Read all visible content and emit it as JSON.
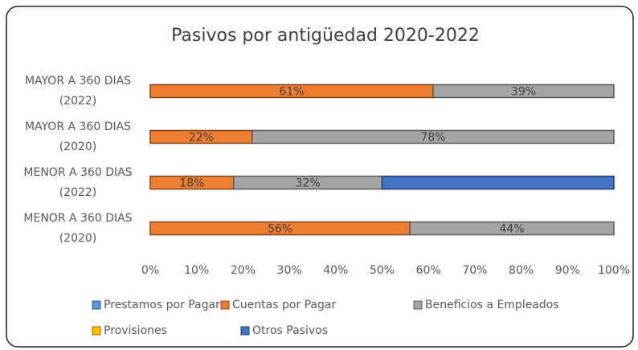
{
  "chart_data": {
    "type": "stacked_bar_horizontal",
    "title": "Pasivos por antigüedad 2020-2022",
    "categories": [
      [
        "MAYOR A 360 DIAS",
        "(2022)"
      ],
      [
        "MAYOR A 360 DIAS",
        "(2020)"
      ],
      [
        "MENOR A 360 DIAS",
        "(2022)"
      ],
      [
        "MENOR A 360 DIAS",
        "(2020)"
      ]
    ],
    "series": [
      {
        "name": "Prestamos por Pagar",
        "color": "#5b9bd5",
        "values": [
          null,
          null,
          null,
          null
        ]
      },
      {
        "name": "Cuentas por Pagar",
        "color": "#ed7d31",
        "values": [
          61,
          22,
          18,
          56
        ],
        "value_labels": [
          "61%",
          "22%",
          "18%",
          "56%"
        ]
      },
      {
        "name": "Beneficios a Empleados",
        "color": "#a5a5a5",
        "values": [
          39,
          78,
          32,
          44
        ],
        "value_labels": [
          "39%",
          "78%",
          "32%",
          "44%"
        ]
      },
      {
        "name": "Provisiones",
        "color": "#ffc000",
        "values": [
          null,
          null,
          null,
          null
        ]
      },
      {
        "name": "Otros Pasivos",
        "color": "#4472c4",
        "values": [
          null,
          null,
          50,
          null
        ]
      }
    ],
    "xlim": [
      0,
      100
    ],
    "xticks": [
      {
        "value": 0,
        "label": "0%"
      },
      {
        "value": 10,
        "label": "10%"
      },
      {
        "value": 20,
        "label": "20%"
      },
      {
        "value": 30,
        "label": "30%"
      },
      {
        "value": 40,
        "label": "40%"
      },
      {
        "value": 50,
        "label": "50%"
      },
      {
        "value": 60,
        "label": "60%"
      },
      {
        "value": 70,
        "label": "70%"
      },
      {
        "value": 80,
        "label": "80%"
      },
      {
        "value": 90,
        "label": "90%"
      },
      {
        "value": 100,
        "label": "100%"
      }
    ],
    "legend": "bottom"
  }
}
